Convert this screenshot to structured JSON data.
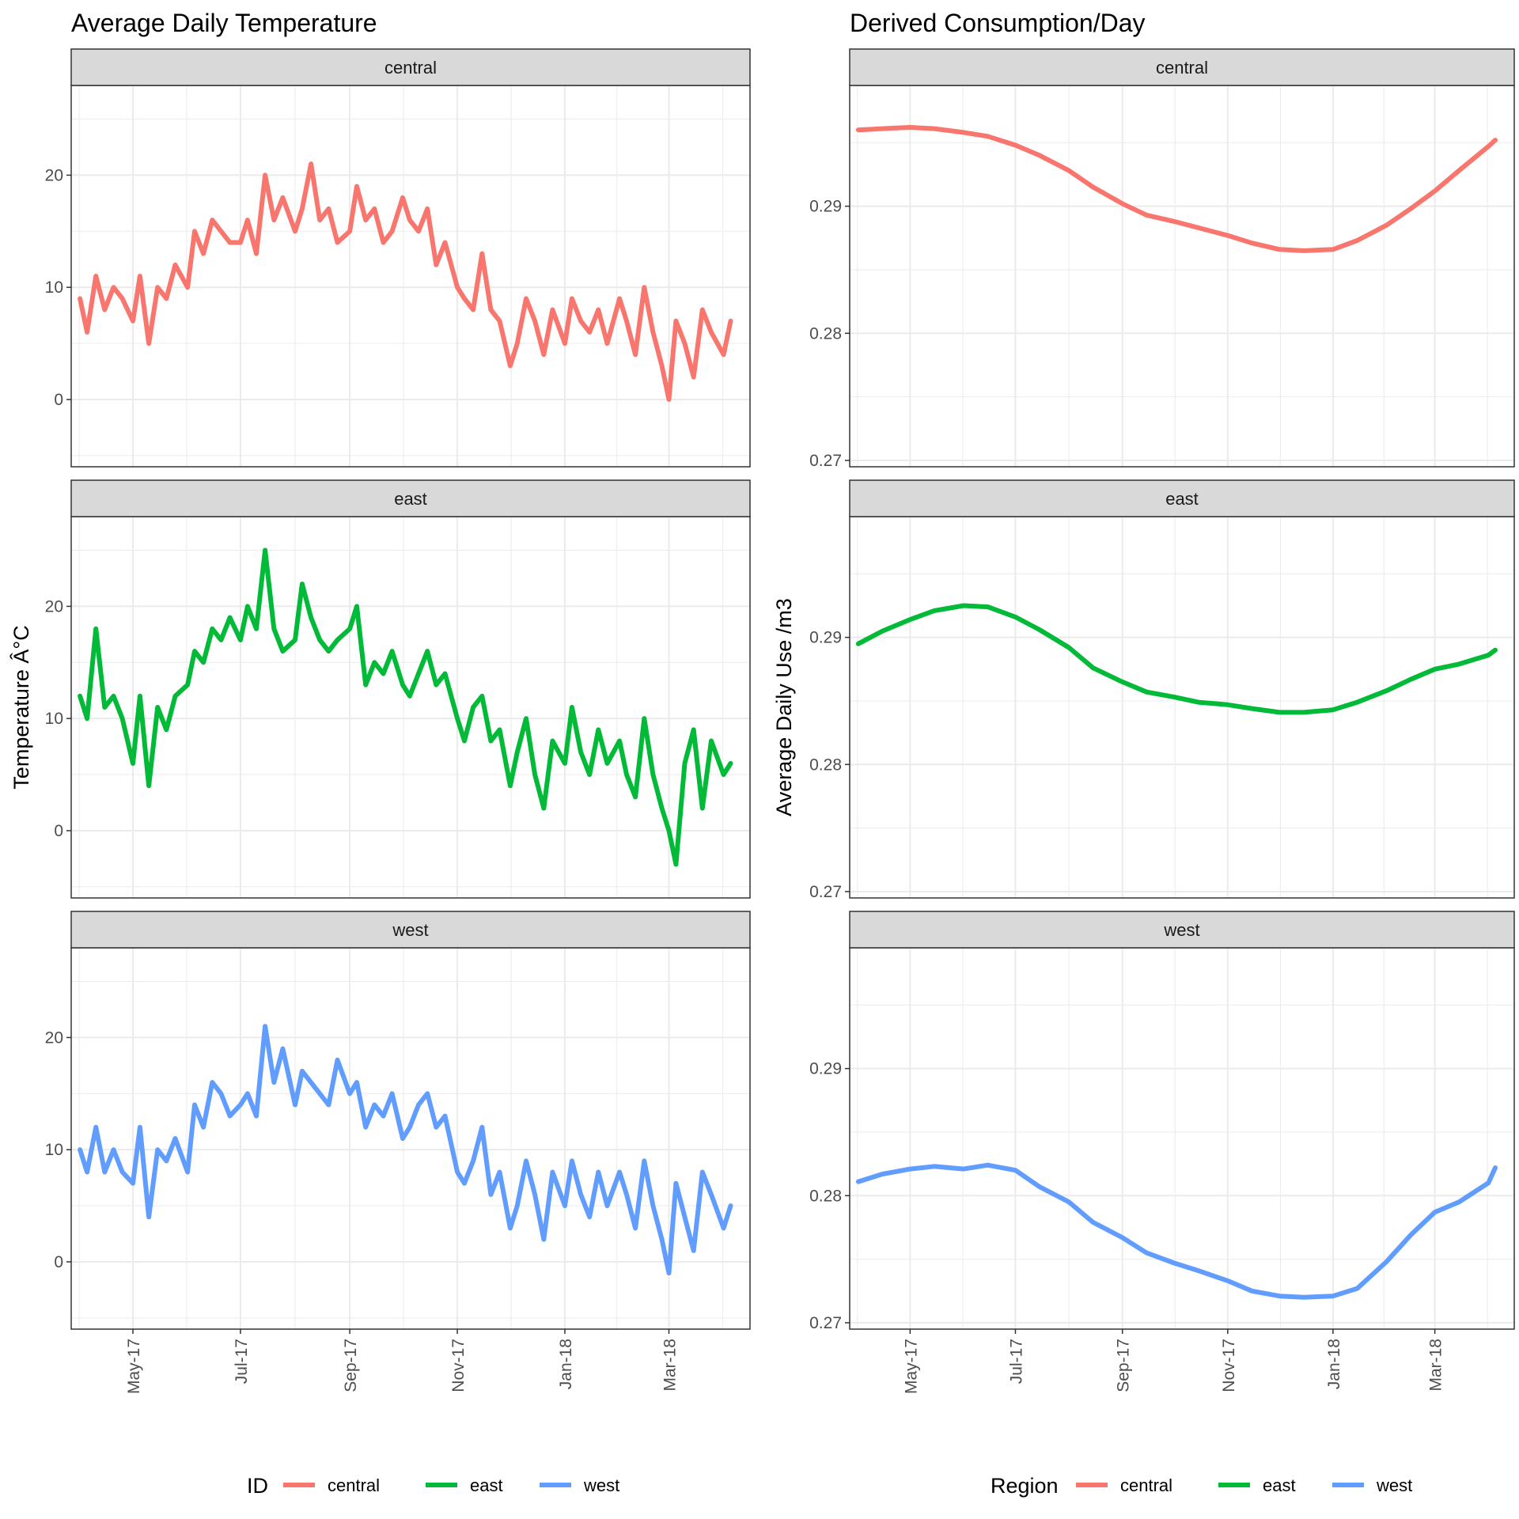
{
  "colors": {
    "central": "#F8766D",
    "east": "#00BA38",
    "west": "#619CFF",
    "strip_fill": "#D9D9D9",
    "grid": "#EBEBEB",
    "panel_border": "#333333",
    "tick_text": "#4D4D4D"
  },
  "chart_data": [
    {
      "type": "line",
      "title": "Average Daily Temperature",
      "xlabel": "",
      "ylabel": "Temperature Â°C",
      "x_axis": "date",
      "x_ticks": [
        "2017-05-01",
        "2017-07-01",
        "2017-09-01",
        "2017-11-01",
        "2018-01-01",
        "2018-03-01"
      ],
      "x_tick_labels": [
        "May-17",
        "Jul-17",
        "Sep-17",
        "Nov-17",
        "Jan-18",
        "Mar-18"
      ],
      "xlim": [
        "2017-03-27",
        "2018-04-16"
      ],
      "y_ticks": [
        0,
        10,
        20
      ],
      "y_tick_labels": [
        "0",
        "10",
        "20"
      ],
      "ylim": [
        -6,
        28
      ],
      "grid": true,
      "legend_title": "ID",
      "legend_position": "bottom",
      "facets": [
        "central",
        "east",
        "west"
      ],
      "series": [
        {
          "name": "central",
          "color": "#F8766D",
          "x": [
            "2017-04-01",
            "2017-04-05",
            "2017-04-10",
            "2017-04-15",
            "2017-04-20",
            "2017-04-25",
            "2017-05-01",
            "2017-05-05",
            "2017-05-10",
            "2017-05-15",
            "2017-05-20",
            "2017-05-25",
            "2017-06-01",
            "2017-06-05",
            "2017-06-10",
            "2017-06-15",
            "2017-06-20",
            "2017-06-25",
            "2017-07-01",
            "2017-07-05",
            "2017-07-10",
            "2017-07-15",
            "2017-07-20",
            "2017-07-25",
            "2017-08-01",
            "2017-08-05",
            "2017-08-10",
            "2017-08-15",
            "2017-08-20",
            "2017-08-25",
            "2017-09-01",
            "2017-09-05",
            "2017-09-10",
            "2017-09-15",
            "2017-09-20",
            "2017-09-25",
            "2017-10-01",
            "2017-10-05",
            "2017-10-10",
            "2017-10-15",
            "2017-10-20",
            "2017-10-25",
            "2017-11-01",
            "2017-11-05",
            "2017-11-10",
            "2017-11-15",
            "2017-11-20",
            "2017-11-25",
            "2017-12-01",
            "2017-12-05",
            "2017-12-10",
            "2017-12-15",
            "2017-12-20",
            "2017-12-25",
            "2018-01-01",
            "2018-01-05",
            "2018-01-10",
            "2018-01-15",
            "2018-01-20",
            "2018-01-25",
            "2018-02-01",
            "2018-02-05",
            "2018-02-10",
            "2018-02-15",
            "2018-02-20",
            "2018-02-25",
            "2018-03-01",
            "2018-03-05",
            "2018-03-10",
            "2018-03-15",
            "2018-03-20",
            "2018-03-25",
            "2018-04-01",
            "2018-04-05"
          ],
          "values": [
            9,
            6,
            11,
            8,
            10,
            9,
            7,
            11,
            5,
            10,
            9,
            12,
            10,
            15,
            13,
            16,
            15,
            14,
            14,
            16,
            13,
            20,
            16,
            18,
            15,
            17,
            21,
            16,
            17,
            14,
            15,
            19,
            16,
            17,
            14,
            15,
            18,
            16,
            15,
            17,
            12,
            14,
            10,
            9,
            8,
            13,
            8,
            7,
            3,
            5,
            9,
            7,
            4,
            8,
            5,
            9,
            7,
            6,
            8,
            5,
            9,
            7,
            4,
            10,
            6,
            3,
            0,
            7,
            5,
            2,
            8,
            6,
            4,
            7
          ]
        },
        {
          "name": "east",
          "color": "#00BA38",
          "x": [
            "2017-04-01",
            "2017-04-05",
            "2017-04-10",
            "2017-04-15",
            "2017-04-20",
            "2017-04-25",
            "2017-05-01",
            "2017-05-05",
            "2017-05-10",
            "2017-05-15",
            "2017-05-20",
            "2017-05-25",
            "2017-06-01",
            "2017-06-05",
            "2017-06-10",
            "2017-06-15",
            "2017-06-20",
            "2017-06-25",
            "2017-07-01",
            "2017-07-05",
            "2017-07-10",
            "2017-07-15",
            "2017-07-20",
            "2017-07-25",
            "2017-08-01",
            "2017-08-05",
            "2017-08-10",
            "2017-08-15",
            "2017-08-20",
            "2017-08-25",
            "2017-09-01",
            "2017-09-05",
            "2017-09-10",
            "2017-09-15",
            "2017-09-20",
            "2017-09-25",
            "2017-10-01",
            "2017-10-05",
            "2017-10-10",
            "2017-10-15",
            "2017-10-20",
            "2017-10-25",
            "2017-11-01",
            "2017-11-05",
            "2017-11-10",
            "2017-11-15",
            "2017-11-20",
            "2017-11-25",
            "2017-12-01",
            "2017-12-05",
            "2017-12-10",
            "2017-12-15",
            "2017-12-20",
            "2017-12-25",
            "2018-01-01",
            "2018-01-05",
            "2018-01-10",
            "2018-01-15",
            "2018-01-20",
            "2018-01-25",
            "2018-02-01",
            "2018-02-05",
            "2018-02-10",
            "2018-02-15",
            "2018-02-20",
            "2018-02-25",
            "2018-03-01",
            "2018-03-05",
            "2018-03-10",
            "2018-03-15",
            "2018-03-20",
            "2018-03-25",
            "2018-04-01",
            "2018-04-05"
          ],
          "values": [
            12,
            10,
            18,
            11,
            12,
            10,
            6,
            12,
            4,
            11,
            9,
            12,
            13,
            16,
            15,
            18,
            17,
            19,
            17,
            20,
            18,
            25,
            18,
            16,
            17,
            22,
            19,
            17,
            16,
            17,
            18,
            20,
            13,
            15,
            14,
            16,
            13,
            12,
            14,
            16,
            13,
            14,
            10,
            8,
            11,
            12,
            8,
            9,
            4,
            7,
            10,
            5,
            2,
            8,
            6,
            11,
            7,
            5,
            9,
            6,
            8,
            5,
            3,
            10,
            5,
            2,
            0,
            -3,
            6,
            9,
            2,
            8,
            5,
            6
          ]
        },
        {
          "name": "west",
          "color": "#619CFF",
          "x": [
            "2017-04-01",
            "2017-04-05",
            "2017-04-10",
            "2017-04-15",
            "2017-04-20",
            "2017-04-25",
            "2017-05-01",
            "2017-05-05",
            "2017-05-10",
            "2017-05-15",
            "2017-05-20",
            "2017-05-25",
            "2017-06-01",
            "2017-06-05",
            "2017-06-10",
            "2017-06-15",
            "2017-06-20",
            "2017-06-25",
            "2017-07-01",
            "2017-07-05",
            "2017-07-10",
            "2017-07-15",
            "2017-07-20",
            "2017-07-25",
            "2017-08-01",
            "2017-08-05",
            "2017-08-10",
            "2017-08-15",
            "2017-08-20",
            "2017-08-25",
            "2017-09-01",
            "2017-09-05",
            "2017-09-10",
            "2017-09-15",
            "2017-09-20",
            "2017-09-25",
            "2017-10-01",
            "2017-10-05",
            "2017-10-10",
            "2017-10-15",
            "2017-10-20",
            "2017-10-25",
            "2017-11-01",
            "2017-11-05",
            "2017-11-10",
            "2017-11-15",
            "2017-11-20",
            "2017-11-25",
            "2017-12-01",
            "2017-12-05",
            "2017-12-10",
            "2017-12-15",
            "2017-12-20",
            "2017-12-25",
            "2018-01-01",
            "2018-01-05",
            "2018-01-10",
            "2018-01-15",
            "2018-01-20",
            "2018-01-25",
            "2018-02-01",
            "2018-02-05",
            "2018-02-10",
            "2018-02-15",
            "2018-02-20",
            "2018-02-25",
            "2018-03-01",
            "2018-03-05",
            "2018-03-10",
            "2018-03-15",
            "2018-03-20",
            "2018-03-25",
            "2018-04-01",
            "2018-04-05"
          ],
          "values": [
            10,
            8,
            12,
            8,
            10,
            8,
            7,
            12,
            4,
            10,
            9,
            11,
            8,
            14,
            12,
            16,
            15,
            13,
            14,
            15,
            13,
            21,
            16,
            19,
            14,
            17,
            16,
            15,
            14,
            18,
            15,
            16,
            12,
            14,
            13,
            15,
            11,
            12,
            14,
            15,
            12,
            13,
            8,
            7,
            9,
            12,
            6,
            8,
            3,
            5,
            9,
            6,
            2,
            8,
            5,
            9,
            6,
            4,
            8,
            5,
            8,
            6,
            3,
            9,
            5,
            2,
            -1,
            7,
            4,
            1,
            8,
            6,
            3,
            5
          ]
        }
      ]
    },
    {
      "type": "line",
      "title": "Derived Consumption/Day",
      "xlabel": "",
      "ylabel": "Average Daily Use /m3",
      "x_axis": "date",
      "x_ticks": [
        "2017-05-01",
        "2017-07-01",
        "2017-09-01",
        "2017-11-01",
        "2018-01-01",
        "2018-03-01"
      ],
      "x_tick_labels": [
        "May-17",
        "Jul-17",
        "Sep-17",
        "Nov-17",
        "Jan-18",
        "Mar-18"
      ],
      "xlim": [
        "2017-03-27",
        "2018-04-16"
      ],
      "y_ticks": [
        0.27,
        0.28,
        0.29
      ],
      "y_tick_labels": [
        "0.27",
        "0.28",
        "0.29"
      ],
      "ylim": [
        0.2695,
        0.2995
      ],
      "grid": true,
      "legend_title": "Region",
      "legend_position": "bottom",
      "facets": [
        "central",
        "east",
        "west"
      ],
      "series": [
        {
          "name": "central",
          "color": "#F8766D",
          "x": [
            "2017-04-01",
            "2017-04-15",
            "2017-05-01",
            "2017-05-15",
            "2017-06-01",
            "2017-06-15",
            "2017-07-01",
            "2017-07-15",
            "2017-08-01",
            "2017-08-15",
            "2017-09-01",
            "2017-09-15",
            "2017-10-01",
            "2017-10-15",
            "2017-11-01",
            "2017-11-15",
            "2017-12-01",
            "2017-12-15",
            "2018-01-01",
            "2018-01-15",
            "2018-02-01",
            "2018-02-15",
            "2018-03-01",
            "2018-03-15",
            "2018-04-01",
            "2018-04-05"
          ],
          "values": [
            0.296,
            0.2961,
            0.2962,
            0.2961,
            0.2958,
            0.2955,
            0.2948,
            0.294,
            0.2928,
            0.2915,
            0.2902,
            0.2893,
            0.2888,
            0.2883,
            0.2877,
            0.2871,
            0.2866,
            0.2865,
            0.2866,
            0.2873,
            0.2885,
            0.2898,
            0.2912,
            0.2928,
            0.2947,
            0.2952
          ]
        },
        {
          "name": "east",
          "color": "#00BA38",
          "x": [
            "2017-04-01",
            "2017-04-15",
            "2017-05-01",
            "2017-05-15",
            "2017-06-01",
            "2017-06-15",
            "2017-07-01",
            "2017-07-15",
            "2017-08-01",
            "2017-08-15",
            "2017-09-01",
            "2017-09-15",
            "2017-10-01",
            "2017-10-15",
            "2017-11-01",
            "2017-11-15",
            "2017-12-01",
            "2017-12-15",
            "2018-01-01",
            "2018-01-15",
            "2018-02-01",
            "2018-02-15",
            "2018-03-01",
            "2018-03-15",
            "2018-04-01",
            "2018-04-05"
          ],
          "values": [
            0.2895,
            0.2905,
            0.2914,
            0.2921,
            0.2925,
            0.2924,
            0.2916,
            0.2906,
            0.2892,
            0.2876,
            0.2865,
            0.2857,
            0.2853,
            0.2849,
            0.2847,
            0.2844,
            0.2841,
            0.2841,
            0.2843,
            0.2849,
            0.2858,
            0.2867,
            0.2875,
            0.2879,
            0.2886,
            0.289
          ]
        },
        {
          "name": "west",
          "color": "#619CFF",
          "x": [
            "2017-04-01",
            "2017-04-15",
            "2017-05-01",
            "2017-05-15",
            "2017-06-01",
            "2017-06-15",
            "2017-07-01",
            "2017-07-15",
            "2017-08-01",
            "2017-08-15",
            "2017-09-01",
            "2017-09-15",
            "2017-10-01",
            "2017-10-15",
            "2017-11-01",
            "2017-11-15",
            "2017-12-01",
            "2017-12-15",
            "2018-01-01",
            "2018-01-15",
            "2018-02-01",
            "2018-02-15",
            "2018-03-01",
            "2018-03-15",
            "2018-04-01",
            "2018-04-05"
          ],
          "values": [
            0.2811,
            0.2817,
            0.2821,
            0.2823,
            0.2821,
            0.2824,
            0.282,
            0.2807,
            0.2795,
            0.2779,
            0.2767,
            0.2755,
            0.2747,
            0.2741,
            0.2733,
            0.2725,
            0.2721,
            0.272,
            0.2721,
            0.2727,
            0.2748,
            0.2769,
            0.2787,
            0.2795,
            0.281,
            0.2822
          ]
        }
      ]
    }
  ]
}
